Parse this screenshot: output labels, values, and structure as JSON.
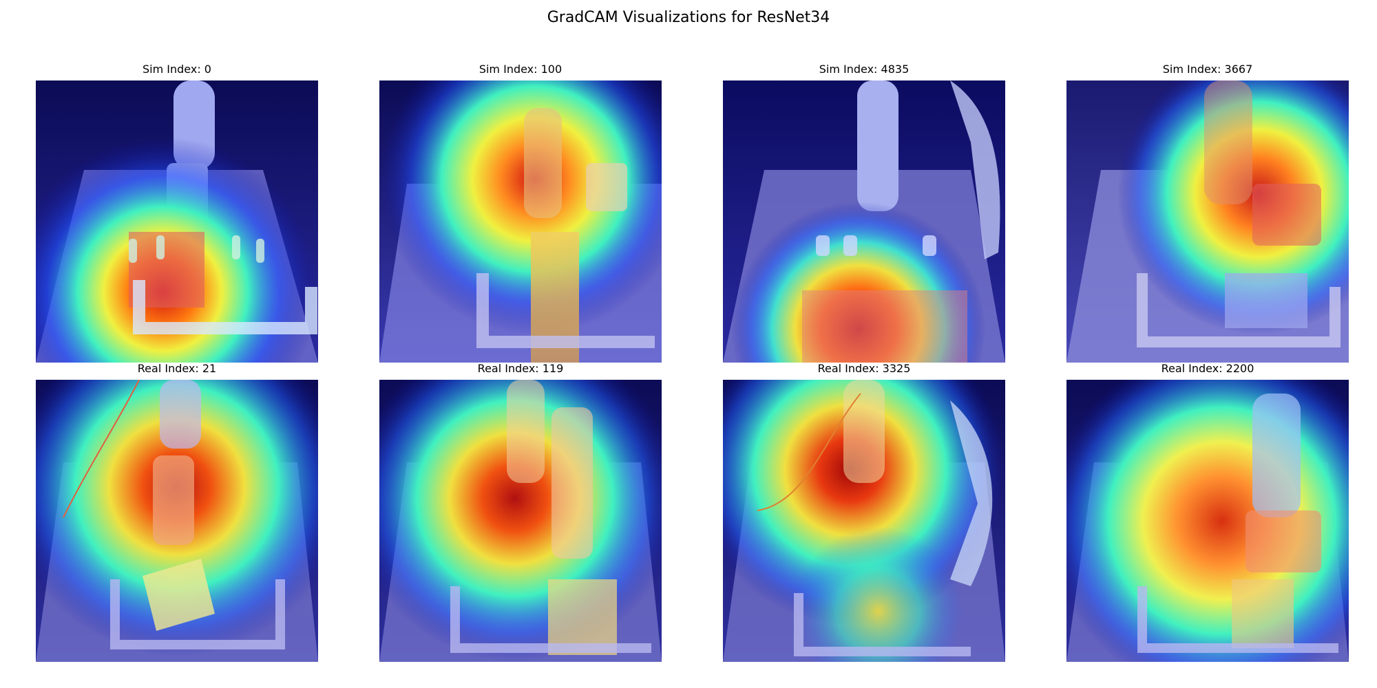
{
  "figure": {
    "title": "GradCAM Visualizations for ResNet34"
  },
  "panels": [
    {
      "title": "Sim Index: 0",
      "variant": "sim",
      "colormap": "jet"
    },
    {
      "title": "Sim Index: 100",
      "variant": "sim",
      "colormap": "jet"
    },
    {
      "title": "Sim Index: 4835",
      "variant": "sim",
      "colormap": "jet"
    },
    {
      "title": "Sim Index: 3667",
      "variant": "sim",
      "colormap": "jet"
    },
    {
      "title": "Real Index: 21",
      "variant": "real",
      "colormap": "jet"
    },
    {
      "title": "Real Index: 119",
      "variant": "real",
      "colormap": "jet"
    },
    {
      "title": "Real Index: 3325",
      "variant": "real",
      "colormap": "jet"
    },
    {
      "title": "Real Index: 2200",
      "variant": "real",
      "colormap": "jet"
    }
  ]
}
